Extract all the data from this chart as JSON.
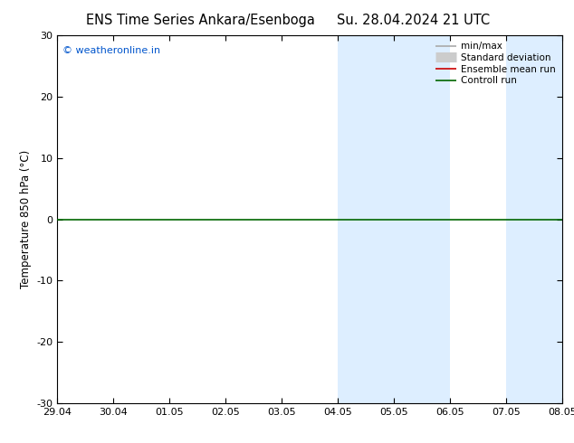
{
  "title_left": "ENS Time Series Ankara/Esenboga",
  "title_right": "Su. 28.04.2024 21 UTC",
  "ylabel": "Temperature 850 hPa (°C)",
  "ylim": [
    -30,
    30
  ],
  "yticks": [
    -30,
    -20,
    -10,
    0,
    10,
    20,
    30
  ],
  "x_labels": [
    "29.04",
    "30.04",
    "01.05",
    "02.05",
    "03.05",
    "04.05",
    "05.05",
    "06.05",
    "07.05",
    "08.05"
  ],
  "x_values": [
    0,
    1,
    2,
    3,
    4,
    5,
    6,
    7,
    8,
    9
  ],
  "copyright_text": "© weatheronline.in",
  "copyright_color": "#0055cc",
  "shaded_bands": [
    {
      "xmin": 5,
      "xmax": 6,
      "color": "#ddeeff"
    },
    {
      "xmin": 6,
      "xmax": 7,
      "color": "#ddeeff"
    },
    {
      "xmin": 8,
      "xmax": 9,
      "color": "#ddeeff"
    }
  ],
  "control_run_color": "#006600",
  "control_run_lw": 1.2,
  "legend_entries": [
    {
      "label": "min/max",
      "color": "#aaaaaa",
      "lw": 1.2,
      "type": "line"
    },
    {
      "label": "Standard deviation",
      "color": "#cccccc",
      "lw": 8,
      "type": "line"
    },
    {
      "label": "Ensemble mean run",
      "color": "#cc0000",
      "lw": 1.2,
      "type": "line"
    },
    {
      "label": "Controll run",
      "color": "#006600",
      "lw": 1.2,
      "type": "line"
    }
  ],
  "bg_color": "#ffffff",
  "spine_color": "#000000",
  "tick_color": "#000000",
  "title_fontsize": 10.5,
  "axis_fontsize": 8.5,
  "tick_fontsize": 8,
  "legend_fontsize": 7.5
}
